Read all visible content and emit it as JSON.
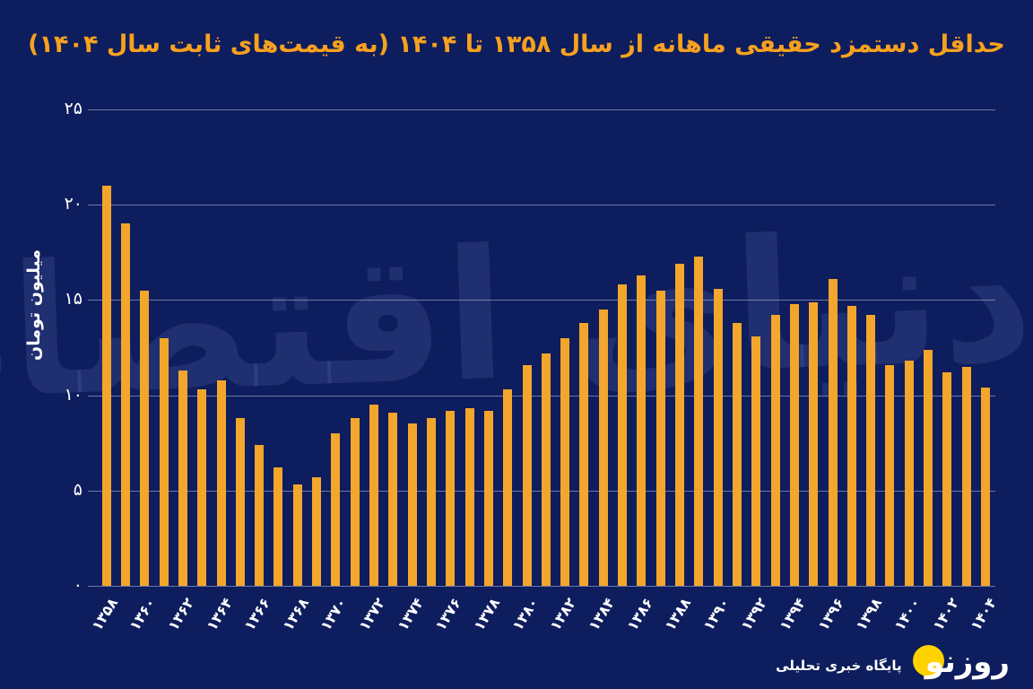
{
  "watermark": {
    "text": "دنیای اقتصاد"
  },
  "footer": {
    "brand": "روزنو",
    "tagline": "پایگاه خبری تحلیلی"
  },
  "colors": {
    "background": "#0e1d5d",
    "bar": "#f2a62b",
    "title": "#f6a11f",
    "grid": "rgba(185,194,224,0.55)",
    "tick_text": "#ffffff",
    "watermark": "rgba(123,143,212,0.16)",
    "logo_yellow": "#ffd200"
  },
  "chart_data": {
    "type": "bar",
    "title": "حداقل دستمزد حقیقی ماهانه از سال ۱۳۵۸ تا ۱۴۰۴ (به قیمت‌های ثابت سال ۱۴۰۴)",
    "xlabel": "",
    "ylabel": "میلیون تومان",
    "ylim": [
      0,
      25
    ],
    "grid": "horizontal",
    "legend": "none",
    "bar_color": "#f2a62b",
    "years": [
      1358,
      1359,
      1360,
      1361,
      1362,
      1363,
      1364,
      1365,
      1366,
      1367,
      1368,
      1369,
      1370,
      1371,
      1372,
      1373,
      1374,
      1375,
      1376,
      1377,
      1378,
      1379,
      1380,
      1381,
      1382,
      1383,
      1384,
      1385,
      1386,
      1387,
      1388,
      1389,
      1390,
      1391,
      1392,
      1393,
      1394,
      1395,
      1396,
      1397,
      1398,
      1399,
      1400,
      1401,
      1402,
      1403,
      1404
    ],
    "values": [
      21.0,
      19.0,
      15.5,
      13.0,
      11.3,
      10.3,
      10.8,
      8.8,
      7.4,
      6.2,
      5.3,
      5.7,
      8.0,
      8.8,
      9.5,
      9.1,
      8.5,
      8.8,
      9.2,
      9.3,
      9.2,
      10.3,
      11.6,
      12.2,
      13.0,
      13.8,
      14.5,
      15.8,
      16.3,
      15.5,
      16.9,
      17.3,
      15.6,
      13.8,
      13.1,
      14.2,
      14.8,
      14.9,
      16.1,
      14.7,
      14.2,
      11.6,
      11.8,
      12.4,
      11.2,
      11.5,
      10.4
    ],
    "x_tick_step": 2,
    "x_tick_labels": [
      "۱۳۵۸",
      "۱۳۶۰",
      "۱۳۶۲",
      "۱۳۶۴",
      "۱۳۶۶",
      "۱۳۶۸",
      "۱۳۷۰",
      "۱۳۷۲",
      "۱۳۷۴",
      "۱۳۷۶",
      "۱۳۷۸",
      "۱۳۸۰",
      "۱۳۸۲",
      "۱۳۸۴",
      "۱۳۸۶",
      "۱۳۸۸",
      "۱۳۹۰",
      "۱۳۹۲",
      "۱۳۹۴",
      "۱۳۹۶",
      "۱۳۹۸",
      "۱۴۰۰",
      "۱۴۰۲",
      "۱۴۰۴"
    ],
    "y_tick_values": [
      25,
      20,
      15,
      10,
      5,
      0
    ],
    "y_tick_labels": [
      "۲۵",
      "۲۰",
      "۱۵",
      "۱۰",
      "۵",
      "۰"
    ]
  }
}
